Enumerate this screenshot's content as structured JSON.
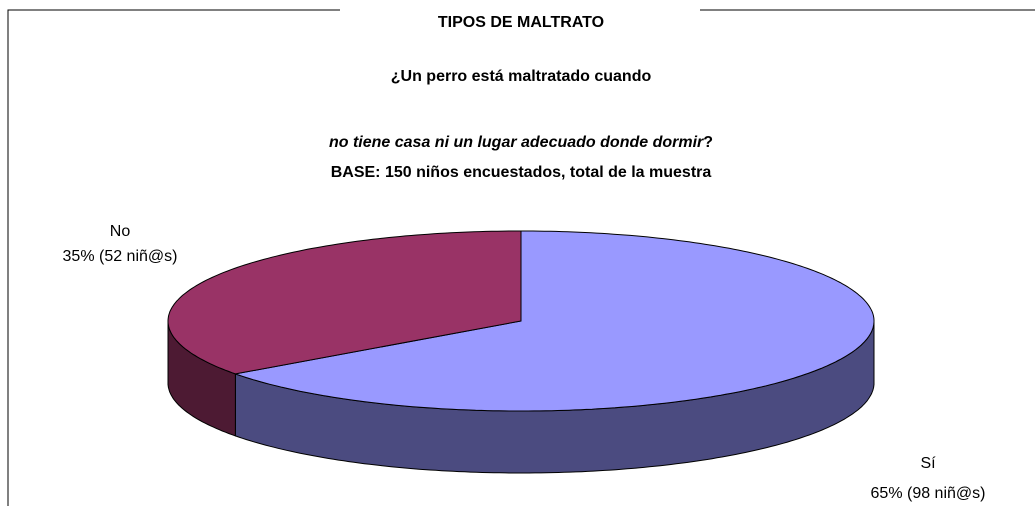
{
  "chart_data": {
    "type": "pie3d",
    "title": "TIPOS DE MALTRATO",
    "question": [
      "¿Un perro está maltratado cuando",
      "no tiene casa ni un lugar adecuado donde dormir",
      "?"
    ],
    "base": "BASE: 150 niños encuestados, total de la muestra",
    "categories": [
      "Sí",
      "No"
    ],
    "values": [
      65,
      35
    ],
    "value_labels": [
      "65% (98 niñ@s)",
      "35% (52 niñ@s)"
    ],
    "colors": [
      "#9999ff",
      "#993366"
    ],
    "side_colors": [
      "#4b4b80",
      "#4d1a33"
    ]
  }
}
